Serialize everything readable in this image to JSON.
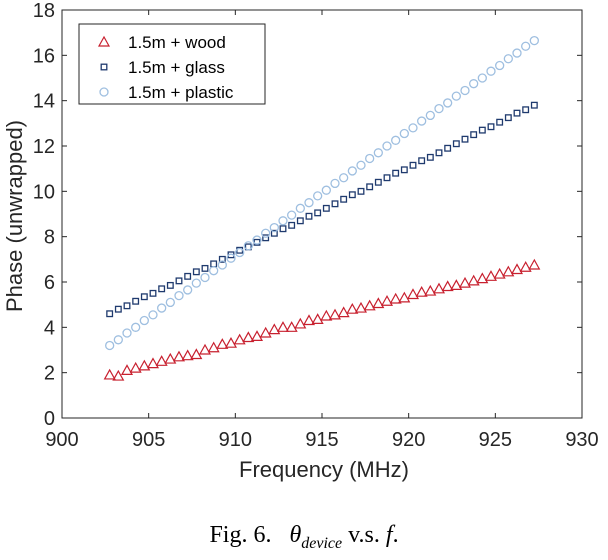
{
  "chart_data": {
    "type": "scatter",
    "xlabel": "Frequency (MHz)",
    "ylabel": "Phase (unwrapped)",
    "xlim": [
      900,
      930
    ],
    "ylim": [
      0,
      18
    ],
    "xticks": [
      900,
      905,
      910,
      915,
      920,
      925,
      930
    ],
    "yticks": [
      0,
      2,
      4,
      6,
      8,
      10,
      12,
      14,
      16,
      18
    ],
    "grid": false,
    "legend_position": "top-left",
    "x_start": 902.75,
    "x_step": 0.5,
    "series": [
      {
        "name": "1.5m + wood",
        "marker": "triangle",
        "color": "#c8202f",
        "values": [
          1.9,
          1.85,
          2.1,
          2.2,
          2.3,
          2.4,
          2.5,
          2.6,
          2.7,
          2.75,
          2.8,
          3.0,
          3.1,
          3.25,
          3.3,
          3.45,
          3.55,
          3.6,
          3.75,
          3.9,
          4.0,
          4.0,
          4.15,
          4.3,
          4.35,
          4.5,
          4.55,
          4.65,
          4.8,
          4.85,
          4.95,
          5.05,
          5.15,
          5.25,
          5.3,
          5.45,
          5.55,
          5.6,
          5.7,
          5.8,
          5.85,
          5.95,
          6.05,
          6.15,
          6.25,
          6.35,
          6.45,
          6.55,
          6.65,
          6.75
        ]
      },
      {
        "name": "1.5m + glass",
        "marker": "square",
        "color": "#1f3a6e",
        "values": [
          4.6,
          4.8,
          4.95,
          5.15,
          5.35,
          5.5,
          5.7,
          5.85,
          6.05,
          6.25,
          6.45,
          6.6,
          6.8,
          7.0,
          7.2,
          7.4,
          7.55,
          7.75,
          7.95,
          8.15,
          8.35,
          8.5,
          8.7,
          8.9,
          9.05,
          9.25,
          9.45,
          9.65,
          9.85,
          10.0,
          10.2,
          10.4,
          10.6,
          10.8,
          10.95,
          11.15,
          11.35,
          11.5,
          11.7,
          11.9,
          12.1,
          12.3,
          12.5,
          12.7,
          12.85,
          13.05,
          13.25,
          13.45,
          13.6,
          13.8
        ]
      },
      {
        "name": "1.5m + plastic",
        "marker": "circle",
        "color": "#9fbfe0",
        "values": [
          3.2,
          3.45,
          3.75,
          4.0,
          4.3,
          4.55,
          4.85,
          5.1,
          5.4,
          5.65,
          5.95,
          6.2,
          6.5,
          6.75,
          7.05,
          7.3,
          7.6,
          7.85,
          8.15,
          8.4,
          8.7,
          8.95,
          9.25,
          9.5,
          9.8,
          10.05,
          10.35,
          10.6,
          10.9,
          11.15,
          11.45,
          11.7,
          12.0,
          12.25,
          12.55,
          12.8,
          13.1,
          13.35,
          13.65,
          13.9,
          14.2,
          14.45,
          14.75,
          15.0,
          15.3,
          15.55,
          15.85,
          16.1,
          16.4,
          16.65
        ]
      }
    ]
  },
  "caption": {
    "prefix": "Fig. 6.",
    "theta": "θ",
    "subscript": "device",
    "middle": "v.s.",
    "f": "f",
    "suffix": "."
  }
}
